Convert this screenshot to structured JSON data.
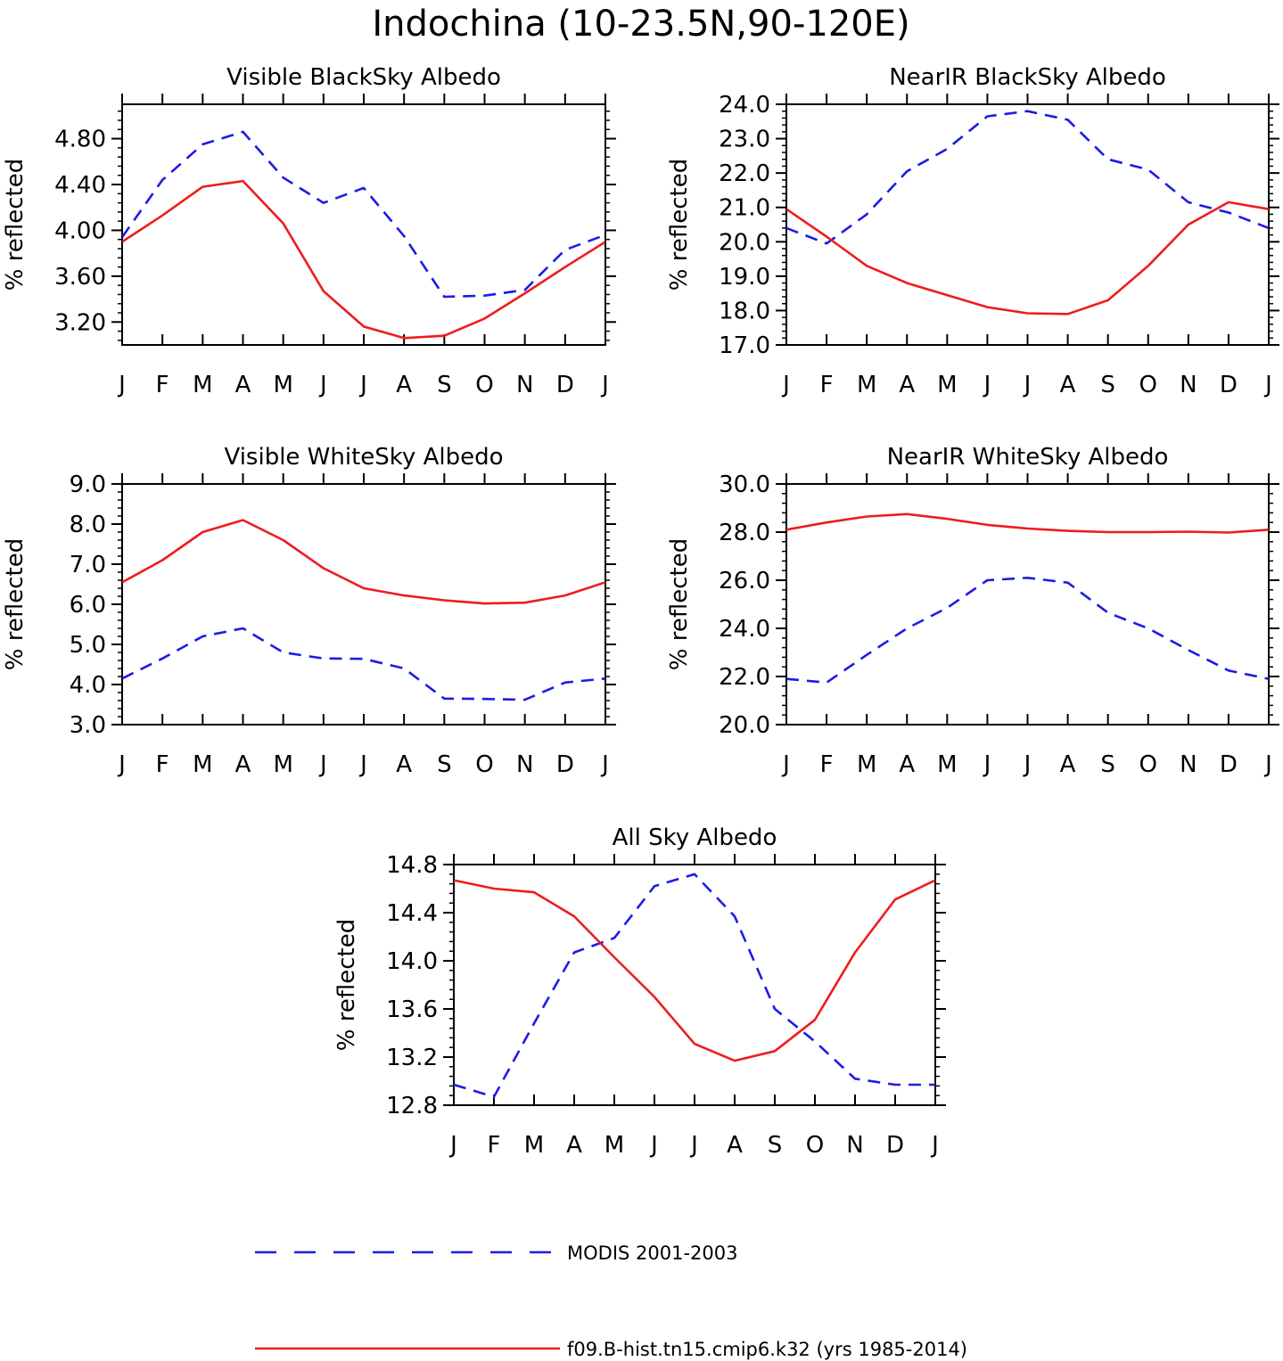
{
  "title": "Indochina (10-23.5N,90-120E)",
  "colors": {
    "model": "#ee1c1c",
    "obs": "#1c1ce6"
  },
  "legend": {
    "obs_label": "MODIS 2001-2003",
    "model_label": "f09.B-hist.tn15.cmip6.k32 (yrs 1985-2014)"
  },
  "chart_data": [
    {
      "type": "line",
      "title": "Visible BlackSky Albedo",
      "ylabel": "% reflected",
      "categories": [
        "J",
        "F",
        "M",
        "A",
        "M",
        "J",
        "J",
        "A",
        "S",
        "O",
        "N",
        "D",
        "J"
      ],
      "ylim": [
        3.0,
        5.1
      ],
      "yticks": [
        "3.20",
        "3.60",
        "4.00",
        "4.40",
        "4.80"
      ],
      "series": [
        {
          "name": "MODIS 2001-2003",
          "style": "dashed",
          "values": [
            3.94,
            4.44,
            4.75,
            4.86,
            4.46,
            4.24,
            4.37,
            3.95,
            3.42,
            3.43,
            3.48,
            3.83,
            3.96
          ]
        },
        {
          "name": "f09.B-hist.tn15.cmip6.k32 (yrs 1985-2014)",
          "style": "solid",
          "values": [
            3.9,
            4.13,
            4.38,
            4.43,
            4.06,
            3.47,
            3.16,
            3.06,
            3.08,
            3.23,
            3.45,
            3.68,
            3.9
          ]
        }
      ]
    },
    {
      "type": "line",
      "title": "NearIR BlackSky Albedo",
      "ylabel": "% reflected",
      "categories": [
        "J",
        "F",
        "M",
        "A",
        "M",
        "J",
        "J",
        "A",
        "S",
        "O",
        "N",
        "D",
        "J"
      ],
      "ylim": [
        17.0,
        24.0
      ],
      "yticks": [
        "17.0",
        "18.0",
        "19.0",
        "20.0",
        "21.0",
        "22.0",
        "23.0",
        "24.0"
      ],
      "series": [
        {
          "name": "MODIS 2001-2003",
          "style": "dashed",
          "values": [
            20.4,
            19.95,
            20.8,
            22.05,
            22.7,
            23.65,
            23.8,
            23.55,
            22.4,
            22.1,
            21.15,
            20.85,
            20.4
          ]
        },
        {
          "name": "f09.B-hist.tn15.cmip6.k32 (yrs 1985-2014)",
          "style": "solid",
          "values": [
            20.95,
            20.15,
            19.3,
            18.8,
            18.45,
            18.1,
            17.92,
            17.9,
            18.3,
            19.3,
            20.5,
            21.15,
            20.95
          ]
        }
      ]
    },
    {
      "type": "line",
      "title": "Visible WhiteSky Albedo",
      "ylabel": "% reflected",
      "categories": [
        "J",
        "F",
        "M",
        "A",
        "M",
        "J",
        "J",
        "A",
        "S",
        "O",
        "N",
        "D",
        "J"
      ],
      "ylim": [
        3.0,
        9.0
      ],
      "yticks": [
        "3.0",
        "4.0",
        "5.0",
        "6.0",
        "7.0",
        "8.0",
        "9.0"
      ],
      "series": [
        {
          "name": "MODIS 2001-2003",
          "style": "dashed",
          "values": [
            4.15,
            4.65,
            5.2,
            5.4,
            4.8,
            4.65,
            4.64,
            4.4,
            3.65,
            3.64,
            3.62,
            4.05,
            4.15
          ]
        },
        {
          "name": "f09.B-hist.tn15.cmip6.k32 (yrs 1985-2014)",
          "style": "solid",
          "values": [
            6.55,
            7.1,
            7.8,
            8.1,
            7.6,
            6.9,
            6.4,
            6.22,
            6.1,
            6.02,
            6.04,
            6.22,
            6.55
          ]
        }
      ]
    },
    {
      "type": "line",
      "title": "NearIR WhiteSky Albedo",
      "ylabel": "% reflected",
      "categories": [
        "J",
        "F",
        "M",
        "A",
        "M",
        "J",
        "J",
        "A",
        "S",
        "O",
        "N",
        "D",
        "J"
      ],
      "ylim": [
        20.0,
        30.0
      ],
      "yticks": [
        "20.0",
        "22.0",
        "24.0",
        "26.0",
        "28.0",
        "30.0"
      ],
      "series": [
        {
          "name": "MODIS 2001-2003",
          "style": "dashed",
          "values": [
            21.9,
            21.75,
            22.9,
            24.0,
            24.85,
            26.0,
            26.1,
            25.9,
            24.65,
            24.0,
            23.1,
            22.25,
            21.9
          ]
        },
        {
          "name": "f09.B-hist.tn15.cmip6.k32 (yrs 1985-2014)",
          "style": "solid",
          "values": [
            28.1,
            28.4,
            28.65,
            28.75,
            28.55,
            28.3,
            28.15,
            28.05,
            28.0,
            28.0,
            28.02,
            27.98,
            28.1
          ]
        }
      ]
    },
    {
      "type": "line",
      "title": "All Sky Albedo",
      "ylabel": "% reflected",
      "categories": [
        "J",
        "F",
        "M",
        "A",
        "M",
        "J",
        "J",
        "A",
        "S",
        "O",
        "N",
        "D",
        "J"
      ],
      "ylim": [
        12.8,
        14.8
      ],
      "yticks": [
        "12.8",
        "13.2",
        "13.6",
        "14.0",
        "14.4",
        "14.8"
      ],
      "series": [
        {
          "name": "MODIS 2001-2003",
          "style": "dashed",
          "values": [
            12.97,
            12.87,
            13.48,
            14.07,
            14.19,
            14.62,
            14.72,
            14.37,
            13.6,
            13.33,
            13.02,
            12.97,
            12.97
          ]
        },
        {
          "name": "f09.B-hist.tn15.cmip6.k32 (yrs 1985-2014)",
          "style": "solid",
          "values": [
            14.67,
            14.6,
            14.57,
            14.37,
            14.03,
            13.7,
            13.31,
            13.17,
            13.25,
            13.51,
            14.07,
            14.51,
            14.67
          ]
        }
      ]
    }
  ]
}
